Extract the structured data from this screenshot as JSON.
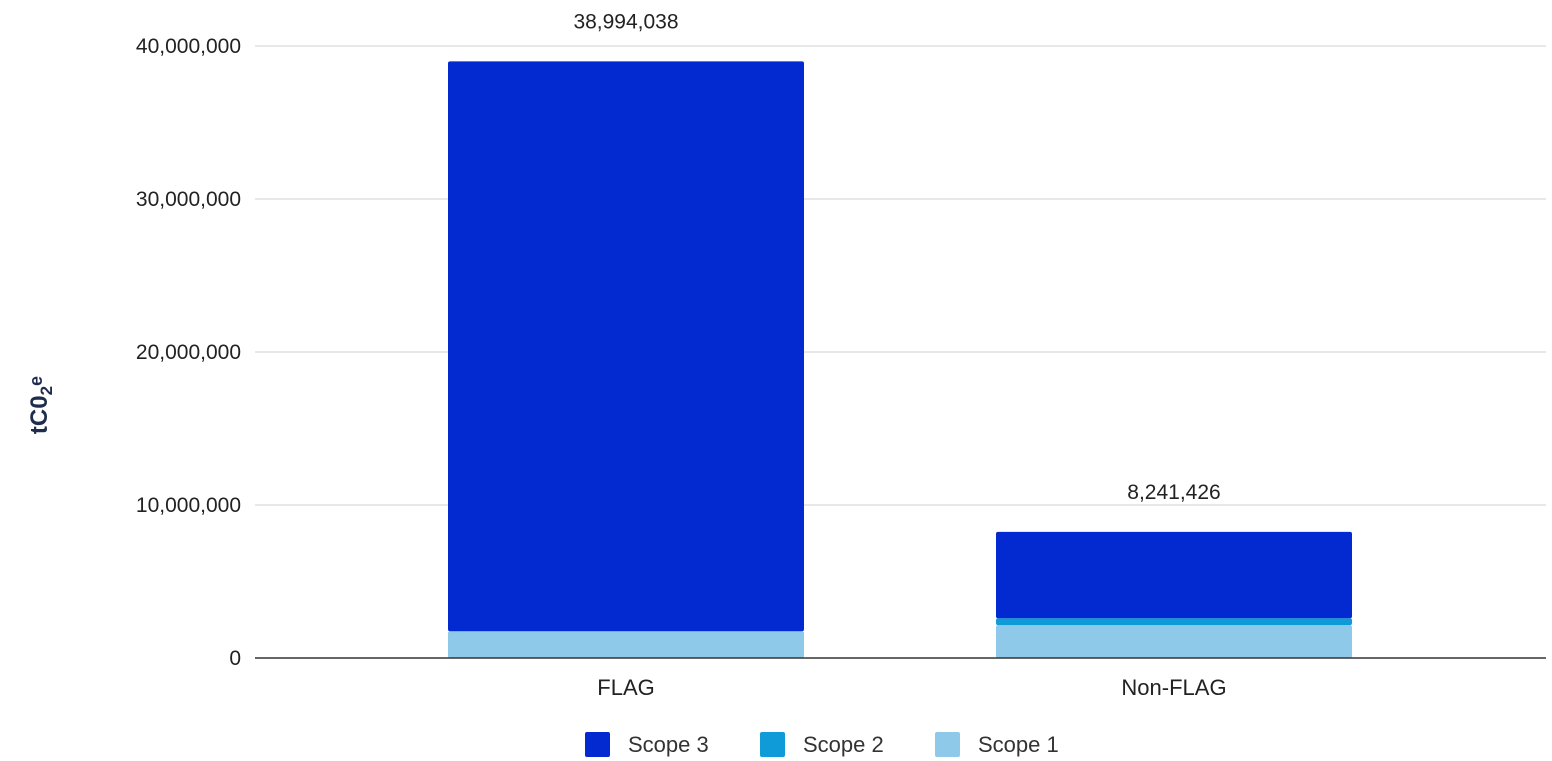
{
  "chart_data": {
    "type": "bar",
    "stacked": true,
    "categories": [
      "FLAG",
      "Non-FLAG"
    ],
    "series": [
      {
        "name": "Scope 1",
        "color": "#8fc9ea",
        "values": [
          1750000,
          2150000
        ]
      },
      {
        "name": "Scope 2",
        "color": "#0f9bd8",
        "values": [
          0,
          450000
        ]
      },
      {
        "name": "Scope 3",
        "color": "#0329d0",
        "values": [
          37244038,
          5641426
        ]
      }
    ],
    "totals": [
      38994038,
      8241426
    ],
    "total_labels": [
      "38,994,038",
      "8,241,426"
    ],
    "ylabel": {
      "main": "tC0",
      "sub": "2",
      "sup": "e"
    },
    "ylim": [
      0,
      40000000
    ],
    "yticks": [
      0,
      10000000,
      20000000,
      30000000,
      40000000
    ],
    "ytick_labels": [
      "0",
      "10,000,000",
      "20,000,000",
      "30,000,000",
      "40,000,000"
    ],
    "grid": true,
    "legend": {
      "position": "bottom",
      "order": [
        "Scope 3",
        "Scope 2",
        "Scope 1"
      ]
    }
  }
}
